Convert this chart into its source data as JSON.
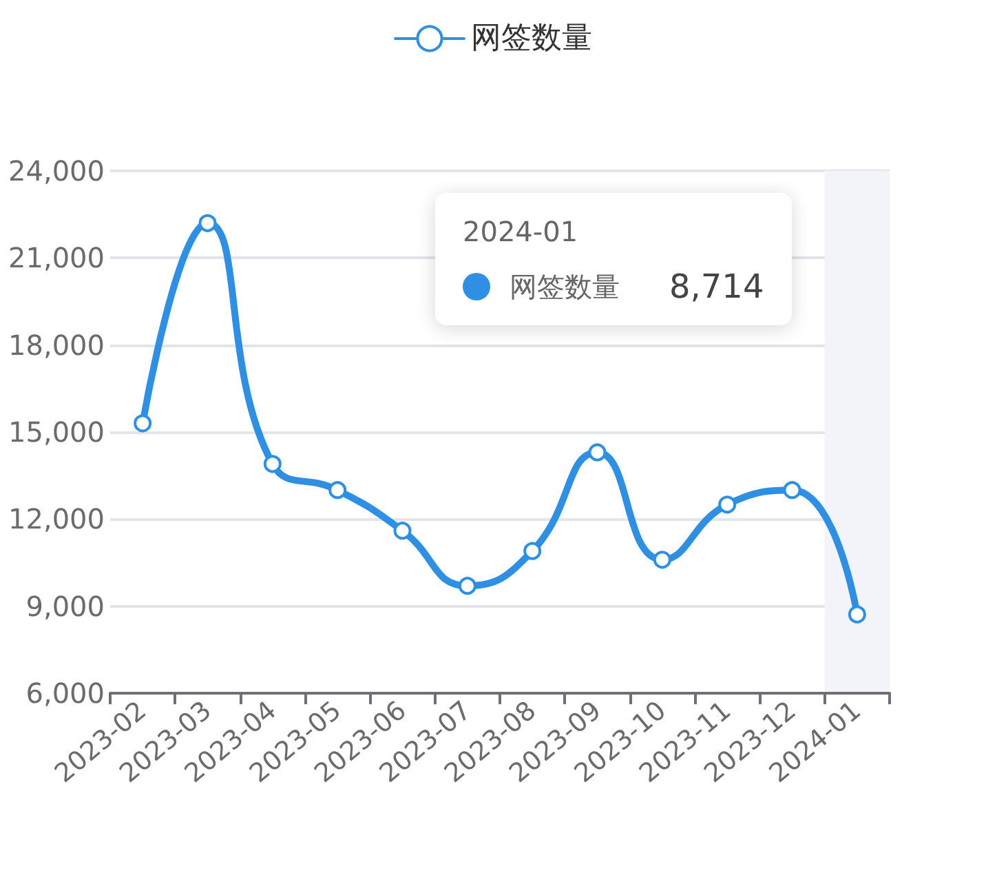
{
  "chart_data": {
    "type": "line",
    "categories": [
      "2023-02",
      "2023-03",
      "2023-04",
      "2023-05",
      "2023-06",
      "2023-07",
      "2023-08",
      "2023-09",
      "2023-10",
      "2023-11",
      "2023-12",
      "2024-01"
    ],
    "series": [
      {
        "name": "网签数量",
        "color": "#2f8fe3",
        "values": [
          15300,
          22200,
          13900,
          13000,
          11600,
          9700,
          10900,
          14300,
          10600,
          12500,
          13000,
          8714
        ]
      }
    ],
    "ylim": [
      6000,
      24000
    ],
    "yticks": [
      {
        "value": 6000,
        "label": "6,000"
      },
      {
        "value": 9000,
        "label": "9,000"
      },
      {
        "value": 12000,
        "label": "12,000"
      },
      {
        "value": 15000,
        "label": "15,000"
      },
      {
        "value": 18000,
        "label": "18,000"
      },
      {
        "value": 21000,
        "label": "21,000"
      },
      {
        "value": 24000,
        "label": "24,000"
      }
    ],
    "bands": [
      {
        "axis": "x",
        "from": "2024-01",
        "to": "2024-01",
        "color": "#f3f4fa"
      }
    ],
    "annotations": [
      "2024-01",
      "网签数量",
      "8,714"
    ],
    "grid": "y",
    "legend": "top",
    "marker": "circle",
    "line_style": "solid"
  }
}
